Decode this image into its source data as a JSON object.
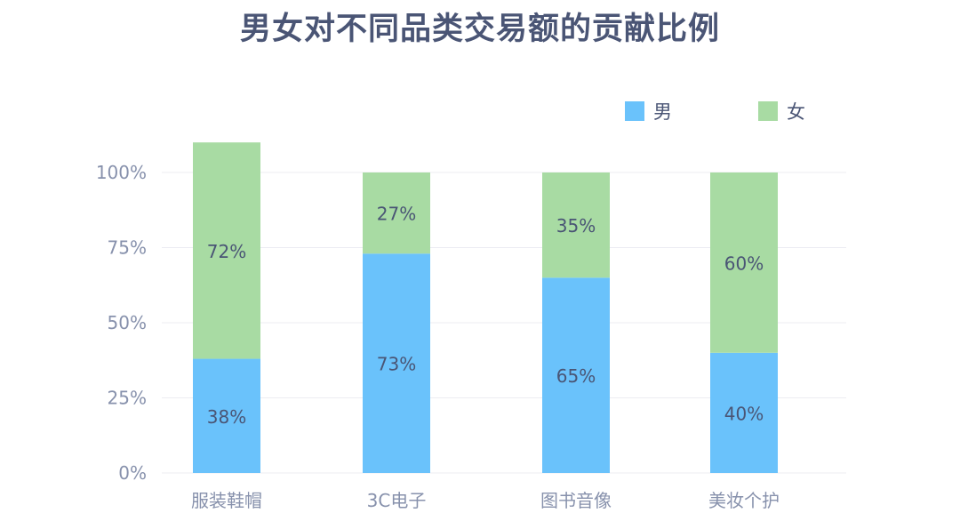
{
  "chart_data": {
    "type": "bar",
    "stacked": true,
    "title": "男女对不同品类交易额的贡献比例",
    "categories": [
      "服装鞋帽",
      "3C电子",
      "图书音像",
      "美妆个护"
    ],
    "series": [
      {
        "name": "男",
        "values": [
          38,
          73,
          65,
          40
        ],
        "labels": [
          "38%",
          "73%",
          "65%",
          "40%"
        ],
        "color": "#6ac2fb"
      },
      {
        "name": "女",
        "values": [
          72,
          27,
          35,
          60
        ],
        "labels": [
          "72%",
          "27%",
          "35%",
          "60%"
        ],
        "color": "#a8dba3"
      }
    ],
    "y_ticks": [
      "0%",
      "25%",
      "50%",
      "75%",
      "100%"
    ],
    "ylim": [
      0,
      100
    ],
    "grid": true,
    "legend_position": "top-right",
    "colors": {
      "title": "#4a5575",
      "axis_text": "#8791ac",
      "bar_label": "#4a5575",
      "grid": "#ececf2"
    }
  }
}
